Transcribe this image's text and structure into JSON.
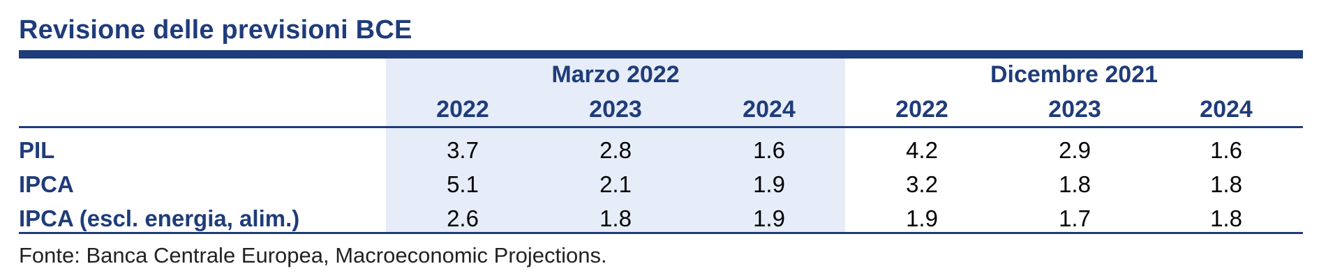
{
  "title": "Revisione delle previsioni BCE",
  "groups": [
    "Marzo 2022",
    "Dicembre 2021"
  ],
  "years": [
    "2022",
    "2023",
    "2024",
    "2022",
    "2023",
    "2024"
  ],
  "rows": [
    {
      "label": "PIL",
      "values": [
        "3.7",
        "2.8",
        "1.6",
        "4.2",
        "2.9",
        "1.6"
      ]
    },
    {
      "label": "IPCA",
      "values": [
        "5.1",
        "2.1",
        "1.9",
        "3.2",
        "1.8",
        "1.8"
      ]
    },
    {
      "label": "IPCA (escl. energia, alim.)",
      "values": [
        "2.6",
        "1.8",
        "1.9",
        "1.9",
        "1.7",
        "1.8"
      ]
    }
  ],
  "source": "Fonte: Banca Centrale Europea, Macroeconomic Projections.",
  "colors": {
    "accent": "#1f3c7a",
    "shade": "#e6edf8"
  }
}
